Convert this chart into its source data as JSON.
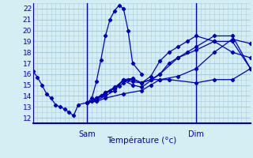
{
  "background_color": "#d4eef4",
  "grid_color": "#aaccdd",
  "line_color": "#0000bb",
  "ylim": [
    11.5,
    22.5
  ],
  "yticks": [
    12,
    13,
    14,
    15,
    16,
    17,
    18,
    19,
    20,
    21,
    22
  ],
  "xlabel": "Température (°c)",
  "sam_x": 12,
  "dim_x": 36,
  "xlim": [
    0,
    48
  ],
  "lines": [
    [
      0,
      16.3,
      1,
      15.7,
      2,
      15.0,
      3,
      14.2,
      4,
      13.8,
      5,
      13.2,
      6,
      13.0,
      7,
      12.8,
      8,
      12.5,
      9,
      12.2,
      10,
      13.2,
      12,
      13.4
    ],
    [
      12,
      13.4,
      13,
      13.8,
      14,
      15.3,
      15,
      17.3,
      16,
      19.5,
      17,
      21.0,
      18,
      21.8,
      19,
      22.3,
      20,
      22.0,
      21,
      20.0,
      22,
      17.0,
      24,
      16.0
    ],
    [
      12,
      13.4,
      13,
      13.5,
      14,
      13.8,
      15,
      14.0,
      16,
      14.3,
      17,
      14.5,
      18,
      14.7,
      19,
      14.9,
      20,
      15.2,
      21,
      15.5,
      22,
      15.5,
      24,
      15.2,
      26,
      15.5,
      28,
      15.5,
      30,
      15.5,
      36,
      15.2,
      40,
      15.5,
      44,
      15.5,
      48,
      16.5
    ],
    [
      12,
      13.4,
      14,
      13.5,
      16,
      13.8,
      20,
      14.2,
      24,
      14.5,
      26,
      15.0,
      28,
      15.5,
      32,
      15.8,
      36,
      16.5,
      40,
      18.0,
      44,
      19.2,
      48,
      18.8
    ],
    [
      12,
      13.4,
      14,
      13.6,
      16,
      14.0,
      18,
      14.5,
      20,
      15.5,
      22,
      15.3,
      24,
      15.2,
      26,
      15.8,
      28,
      17.2,
      30,
      18.0,
      32,
      18.5,
      34,
      19.0,
      36,
      19.5,
      40,
      19.0,
      44,
      18.0,
      48,
      17.5
    ],
    [
      12,
      13.4,
      14,
      13.7,
      16,
      14.2,
      18,
      14.7,
      20,
      15.5,
      22,
      15.6,
      24,
      15.2,
      26,
      15.5,
      28,
      16.0,
      30,
      17.0,
      32,
      17.5,
      34,
      18.0,
      36,
      18.5,
      40,
      19.5,
      44,
      19.5,
      48,
      16.5
    ],
    [
      12,
      13.4,
      14,
      13.8,
      16,
      14.3,
      18,
      14.8,
      20,
      15.4,
      22,
      15.0,
      24,
      14.8,
      28,
      16.0,
      32,
      17.5,
      36,
      18.2,
      40,
      19.0,
      44,
      19.0,
      48,
      16.5
    ]
  ],
  "xlabel_fontsize": 7.5,
  "tick_fontsize": 6.5,
  "marker_fontsize": 7.0
}
